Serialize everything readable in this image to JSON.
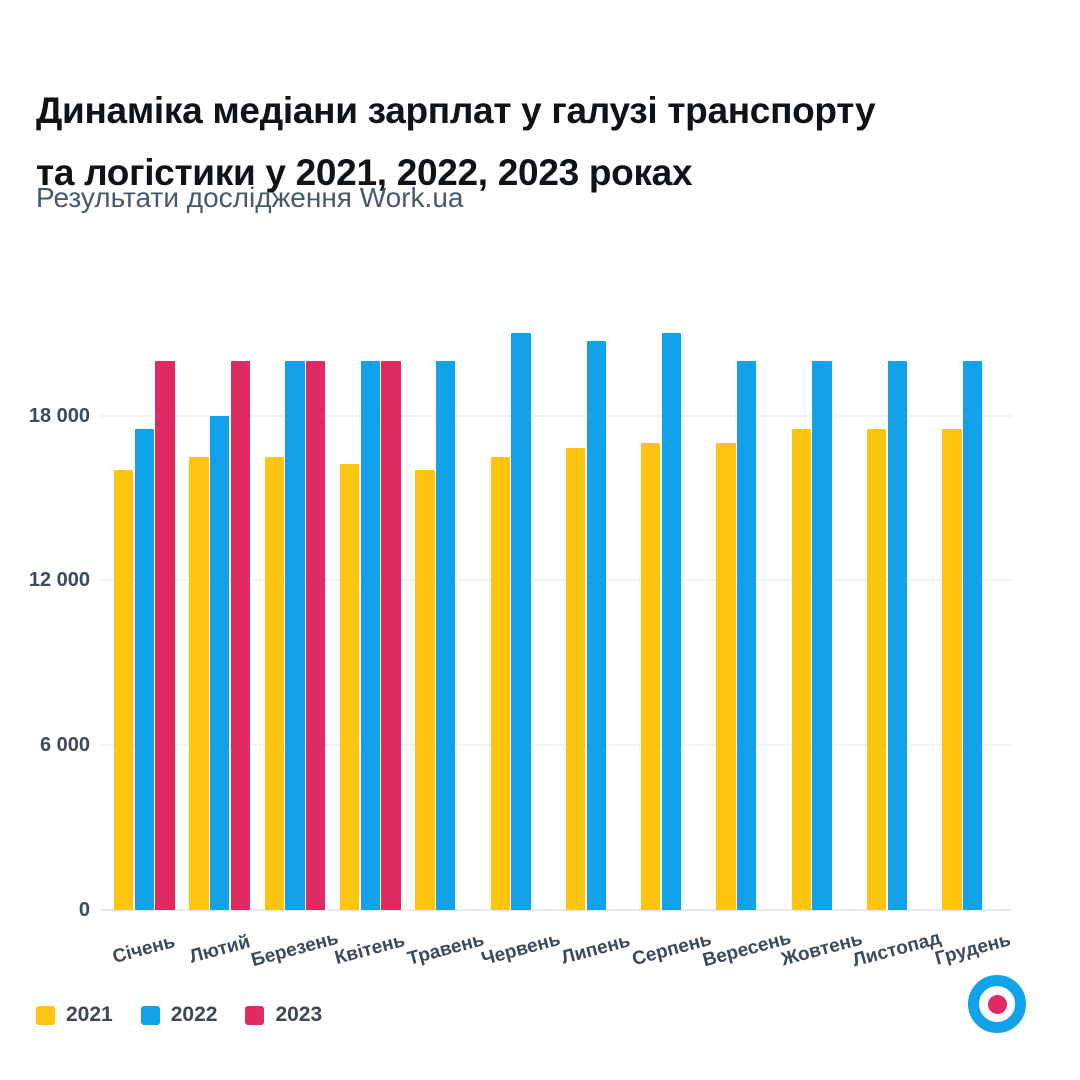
{
  "header": {
    "title_line1": "Динаміка медіани зарплат у галузі транспорту",
    "title_line2": "та логістики у 2021, 2022, 2023 роках",
    "subtitle": "Результати дослідження Work.ua"
  },
  "colors": {
    "yellow_2021": "#ffc40d",
    "blue_2022": "#12a2e9",
    "pink_2023": "#e02a62",
    "axis_text": "#3d4a5c",
    "grid": "#f1f3f5",
    "title_text": "#0f1317",
    "subtitle_text": "#475a6b"
  },
  "chart_data": {
    "type": "bar",
    "title": "Динаміка медіани зарплат у галузі транспорту та логістики у 2021, 2022, 2023 роках",
    "subtitle": "Результати дослідження Work.ua",
    "categories": [
      "Січень",
      "Лютий",
      "Березень",
      "Квітень",
      "Травень",
      "Червень",
      "Липень",
      "Серпень",
      "Вересень",
      "Жовтень",
      "Листопад",
      "Грудень"
    ],
    "series": [
      {
        "name": "2021",
        "color": "#ffc40d",
        "values": [
          16000,
          16500,
          16500,
          16250,
          16000,
          16500,
          16800,
          17000,
          17000,
          17500,
          17500,
          17500
        ]
      },
      {
        "name": "2022",
        "color": "#12a2e9",
        "values": [
          17500,
          18000,
          20000,
          20000,
          20000,
          21000,
          20700,
          21000,
          20000,
          20000,
          20000,
          20000
        ]
      },
      {
        "name": "2023",
        "color": "#e02a62",
        "values": [
          20000,
          20000,
          20000,
          20000,
          null,
          null,
          null,
          null,
          null,
          null,
          null,
          null
        ]
      }
    ],
    "y_ticks": [
      {
        "value": 0,
        "label": "0"
      },
      {
        "value": 6000,
        "label": "6 000"
      },
      {
        "value": 12000,
        "label": "12 000"
      },
      {
        "value": 18000,
        "label": "18 000"
      }
    ],
    "ylim": [
      0,
      21500
    ],
    "xlabel": "",
    "ylabel": "",
    "grid": true,
    "legend_position": "bottom-left"
  },
  "logo": {
    "name": "Work.ua logo",
    "ring_color": "#12a2e9",
    "dot_color": "#e02a62"
  }
}
